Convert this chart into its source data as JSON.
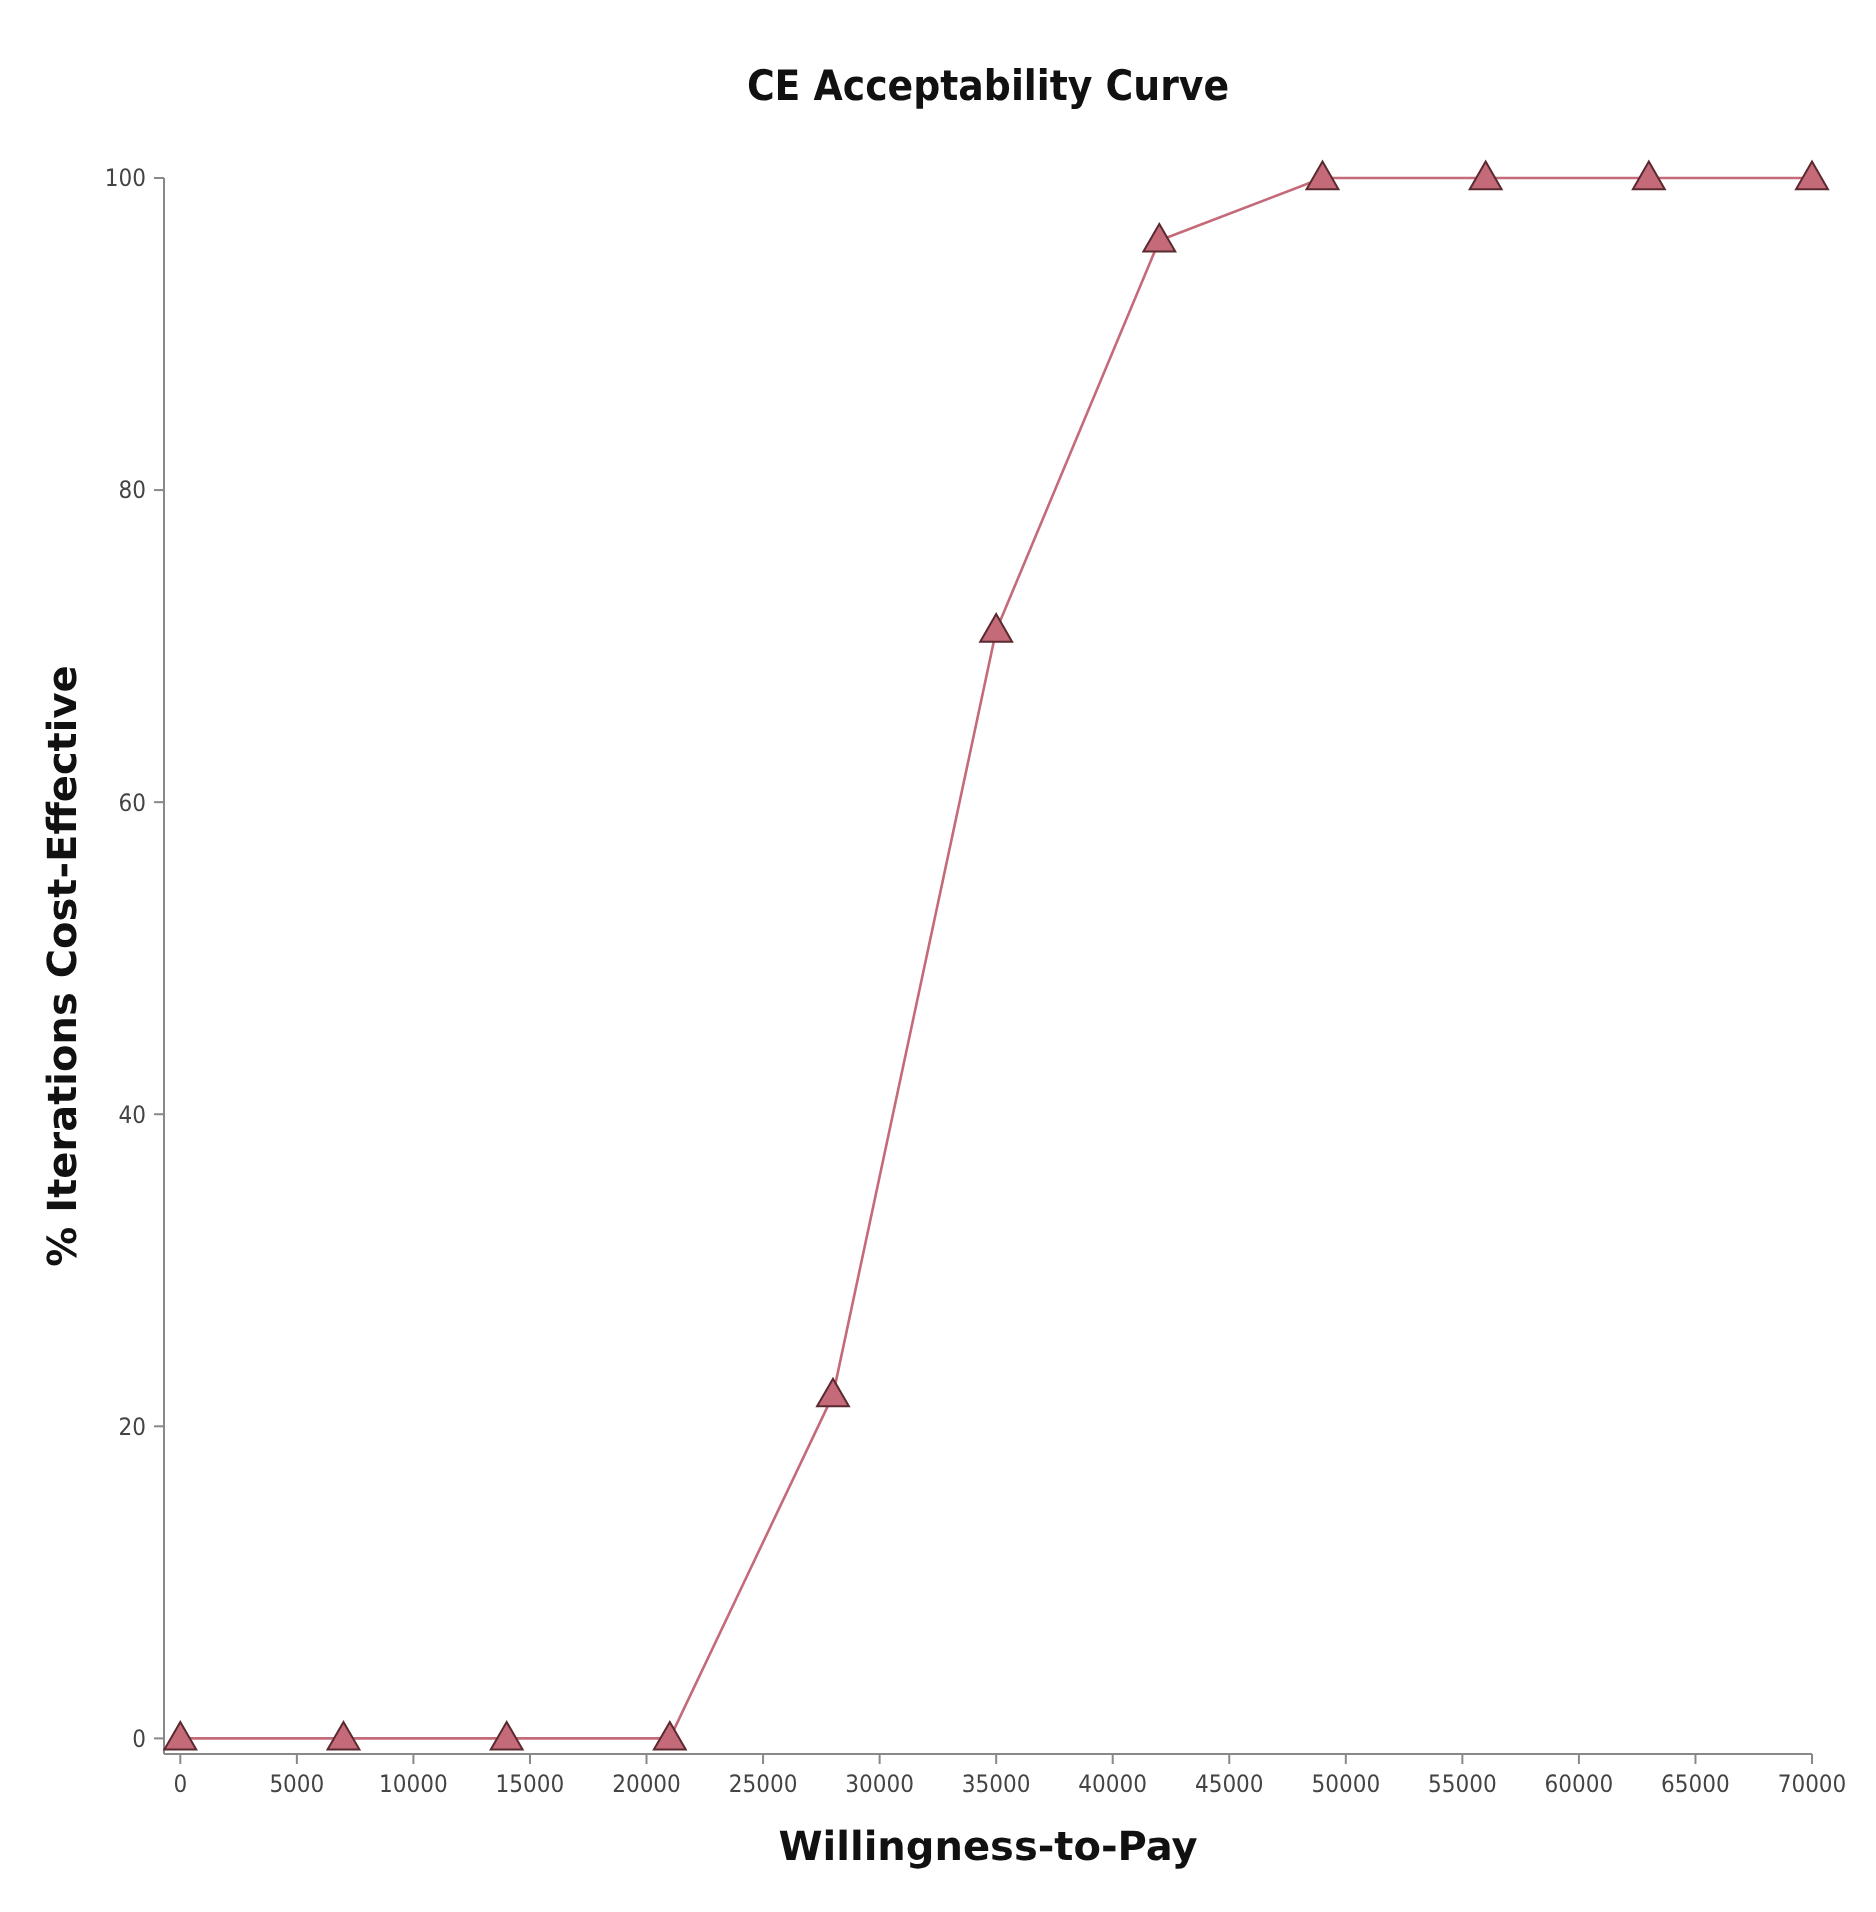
{
  "chart_data": {
    "type": "line",
    "title": "CE Acceptability Curve",
    "xlabel": "Willingness-to-Pay",
    "ylabel": "% Iterations Cost-Effective",
    "x": [
      0,
      7000,
      14000,
      21000,
      28000,
      35000,
      42000,
      49000,
      56000,
      63000,
      70000
    ],
    "series": [
      {
        "color": "#c46a78",
        "values": [
          0,
          0,
          0,
          0,
          22,
          71,
          96,
          100,
          100,
          100,
          100
        ]
      }
    ],
    "xlim": [
      -700,
      70000
    ],
    "ylim": [
      -1,
      100
    ],
    "xticks": [
      0,
      5000,
      10000,
      15000,
      20000,
      25000,
      30000,
      35000,
      40000,
      45000,
      50000,
      55000,
      60000,
      65000,
      70000
    ],
    "yticks": [
      0,
      20,
      40,
      60,
      80,
      100
    ],
    "marker": "triangle",
    "line_style": "solid",
    "grid": false
  }
}
